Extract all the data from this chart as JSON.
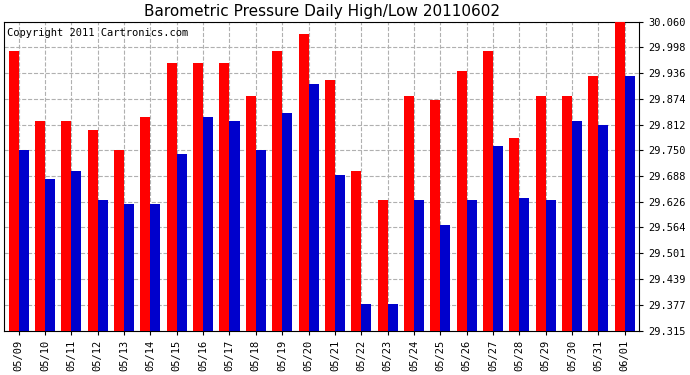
{
  "title": "Barometric Pressure Daily High/Low 20110602",
  "copyright": "Copyright 2011 Cartronics.com",
  "categories": [
    "05/09",
    "05/10",
    "05/11",
    "05/12",
    "05/13",
    "05/14",
    "05/15",
    "05/16",
    "05/17",
    "05/18",
    "05/19",
    "05/20",
    "05/21",
    "05/22",
    "05/23",
    "05/24",
    "05/25",
    "05/26",
    "05/27",
    "05/28",
    "05/29",
    "05/30",
    "05/31",
    "06/01"
  ],
  "highs": [
    29.99,
    29.82,
    29.82,
    29.8,
    29.75,
    29.83,
    29.96,
    29.96,
    29.96,
    29.88,
    29.99,
    30.03,
    29.92,
    29.7,
    29.63,
    29.88,
    29.87,
    29.94,
    29.99,
    29.78,
    29.88,
    29.88,
    29.93,
    30.06
  ],
  "lows": [
    29.75,
    29.68,
    29.7,
    29.63,
    29.62,
    29.62,
    29.74,
    29.83,
    29.82,
    29.75,
    29.84,
    29.91,
    29.69,
    29.38,
    29.38,
    29.63,
    29.57,
    29.63,
    29.76,
    29.635,
    29.63,
    29.82,
    29.81,
    29.93
  ],
  "ymin": 29.315,
  "ymax": 30.06,
  "yticks": [
    29.315,
    29.377,
    29.439,
    29.501,
    29.564,
    29.626,
    29.688,
    29.75,
    29.812,
    29.874,
    29.936,
    29.998,
    30.06
  ],
  "high_color": "#ff0000",
  "low_color": "#0000cc",
  "bg_color": "#ffffff",
  "plot_bg_color": "#ffffff",
  "grid_color": "#b0b0b0",
  "title_fontsize": 11,
  "copyright_fontsize": 7.5,
  "bar_width": 0.38
}
